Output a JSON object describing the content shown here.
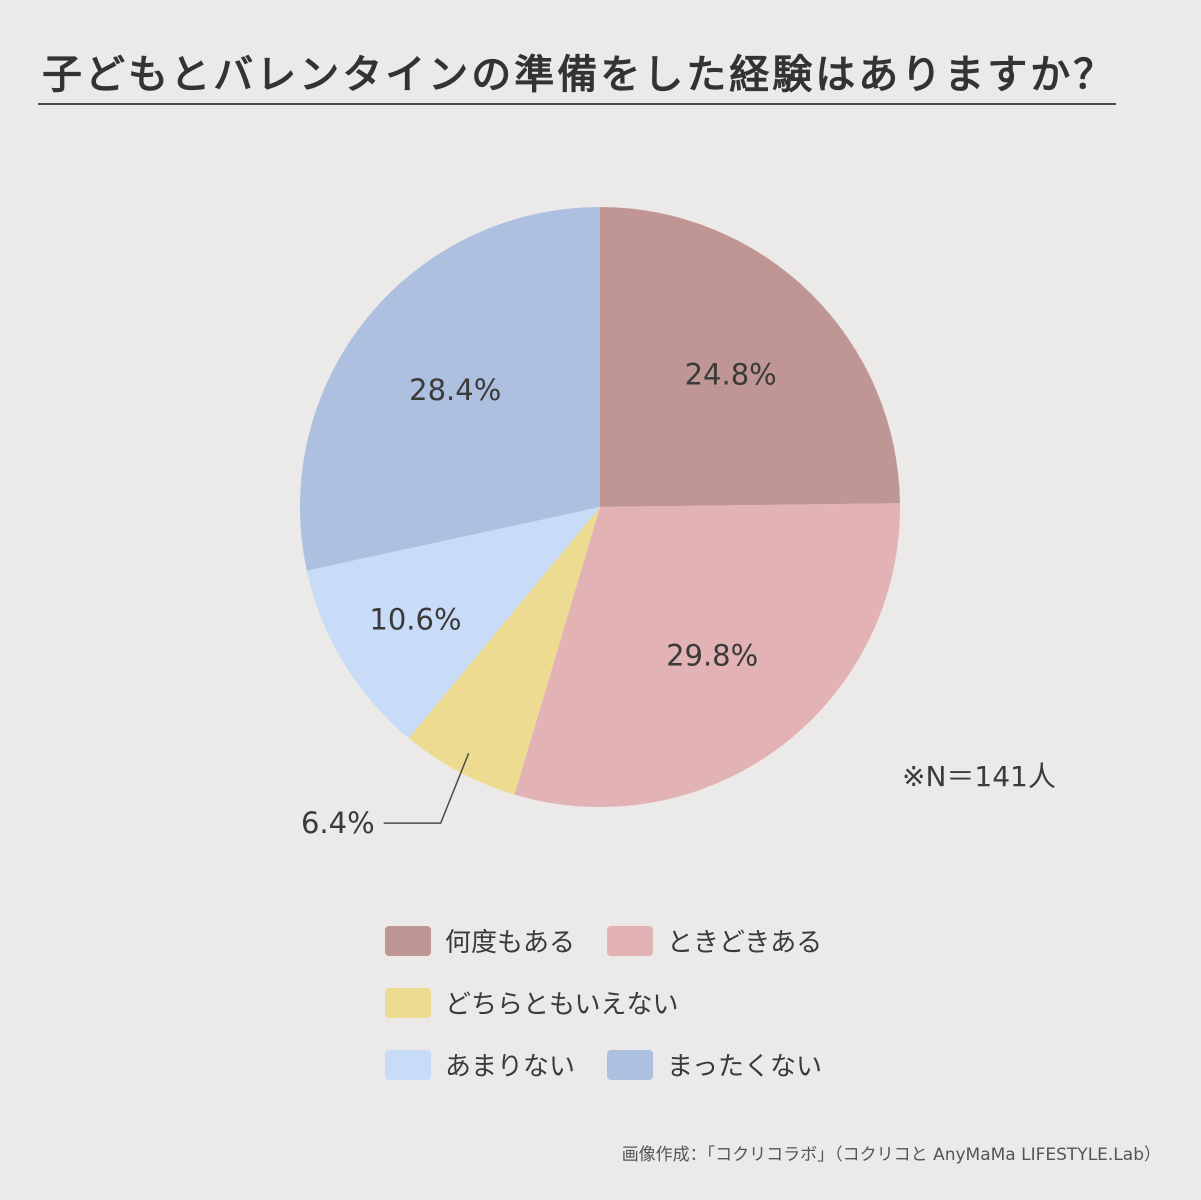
{
  "chart_data": {
    "type": "pie",
    "title": "子どもとバレンタインの準備をした経験はありますか？",
    "slices": [
      {
        "name": "何度もある",
        "value": 24.8,
        "label": "24.8%",
        "color": "#bf9694"
      },
      {
        "name": "ときどきある",
        "value": 29.8,
        "label": "29.8%",
        "color": "#e3b2b4"
      },
      {
        "name": "どちらともいえない",
        "value": 6.4,
        "label": "6.4%",
        "color": "#eddb92"
      },
      {
        "name": "あまりない",
        "value": 10.6,
        "label": "10.6%",
        "color": "#c8dbf7"
      },
      {
        "name": "まったくない",
        "value": 28.4,
        "label": "28.4%",
        "color": "#aec0df"
      }
    ],
    "start_angle": "12 o'clock",
    "direction": "clockwise",
    "legend_position": "bottom",
    "note": "※N＝141人"
  },
  "credit": "画像作成：「コクリコラボ」（コクリコと AnyMaMa LIFESTYLE.Lab）"
}
